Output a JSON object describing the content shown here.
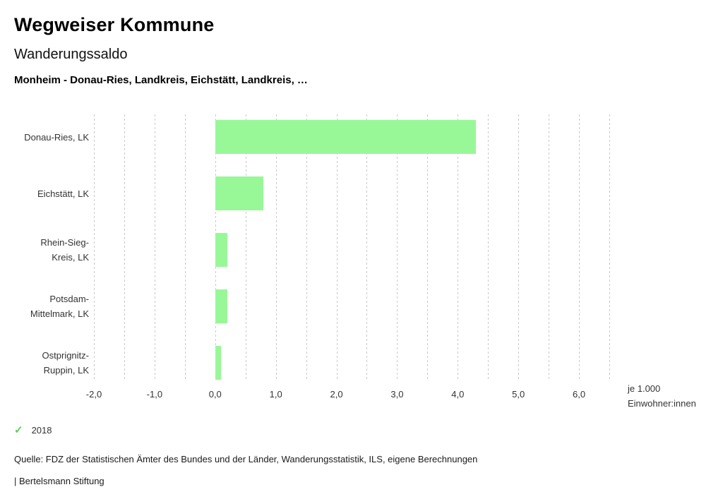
{
  "header": {
    "app_title": "Wegweiser Kommune",
    "indicator_title": "Wanderungssaldo",
    "comparison_line": "Monheim - Donau-Ries, Landkreis, Eichstätt, Landkreis, …"
  },
  "chart_data": {
    "type": "bar",
    "orientation": "horizontal",
    "title": "Wanderungssaldo",
    "xlabel": "je 1.000 Einwohner:innen",
    "ylabel": "",
    "xlim": [
      -2.0,
      6.5
    ],
    "gridline_step": 0.5,
    "grid": true,
    "categories": [
      "Donau-Ries, LK",
      "Eichstätt, LK",
      "Rhein-Sieg-Kreis, LK",
      "Potsdam-Mittelmark, LK",
      "Ostprignitz-Ruppin, LK"
    ],
    "category_label_lines": [
      [
        "Donau-Ries, LK"
      ],
      [
        "Eichstätt, LK"
      ],
      [
        "Rhein-Sieg-",
        "Kreis, LK"
      ],
      [
        "Potsdam-",
        "Mittelmark, LK"
      ],
      [
        "Ostprignitz-",
        "Ruppin, LK"
      ]
    ],
    "series": [
      {
        "name": "2018",
        "values": [
          4.3,
          0.8,
          0.2,
          0.2,
          0.1
        ]
      }
    ],
    "x_ticks": [
      {
        "value": -2,
        "label": "-2,0"
      },
      {
        "value": -1,
        "label": "-1,0"
      },
      {
        "value": 0,
        "label": "0,0"
      },
      {
        "value": 1,
        "label": "1,0"
      },
      {
        "value": 2,
        "label": "2,0"
      },
      {
        "value": 3,
        "label": "3,0"
      },
      {
        "value": 4,
        "label": "4,0"
      },
      {
        "value": 5,
        "label": "5,0"
      },
      {
        "value": 6,
        "label": "6,0"
      }
    ],
    "unit_label_lines": [
      "je 1.000",
      "Einwohner:innen"
    ],
    "bar_color": "#98f898",
    "legend_position": "bottom-left"
  },
  "legend": {
    "check_icon": "✓",
    "check_color": "#5ecc5e",
    "items": [
      "2018"
    ]
  },
  "footer": {
    "source": "Quelle: FDZ der Statistischen Ämter des Bundes und der Länder, Wanderungsstatistik, ILS, eigene Berechnungen",
    "branding": "| Bertelsmann Stiftung"
  }
}
